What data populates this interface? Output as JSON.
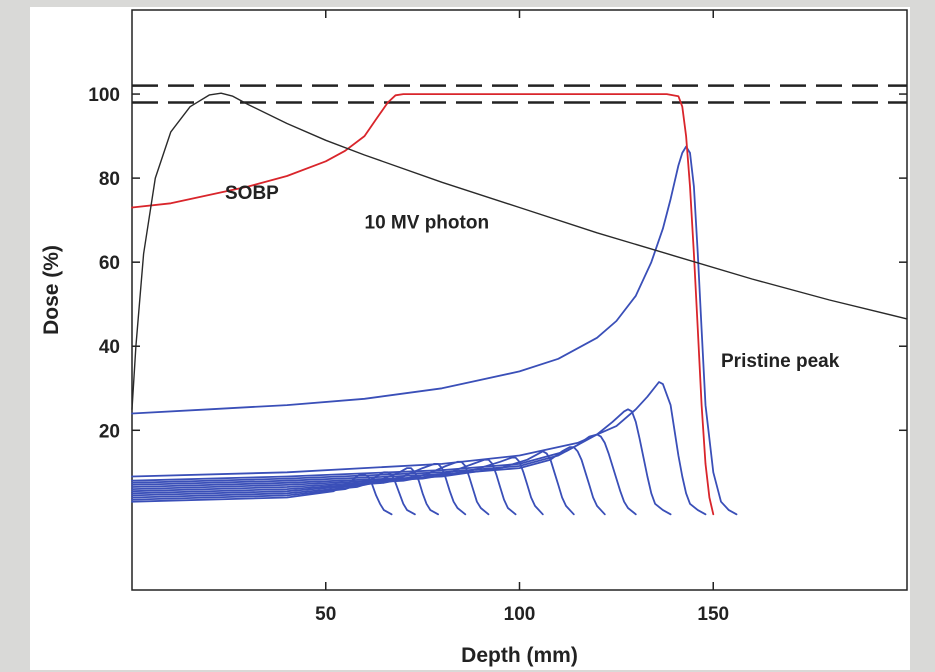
{
  "chart_data": {
    "type": "line",
    "xlabel": "Depth (mm)",
    "ylabel": "Dose (%)",
    "xlim": [
      0,
      200
    ],
    "ylim": [
      -18,
      120
    ],
    "xticks": [
      50,
      100,
      150
    ],
    "yticks": [
      20,
      40,
      60,
      80,
      100
    ],
    "grid": false,
    "reference_lines": [
      {
        "y": 102,
        "style": "dashed",
        "color": "#222222"
      },
      {
        "y": 98,
        "style": "dashed",
        "color": "#222222"
      }
    ],
    "annotations": [
      {
        "text": "SOBP",
        "x": 24,
        "y": 75
      },
      {
        "text": "10 MV photon",
        "x": 60,
        "y": 68
      },
      {
        "text": "Pristine peak",
        "x": 152,
        "y": 35
      }
    ],
    "series": [
      {
        "color": "#d9252b",
        "x": [
          0,
          10,
          20,
          30,
          40,
          50,
          55,
          60,
          63,
          66,
          68,
          70,
          80,
          100,
          120,
          138,
          141,
          142,
          143,
          144,
          145,
          146,
          147,
          148,
          149,
          150
        ],
        "y": [
          73,
          74,
          76,
          78,
          80.5,
          84,
          86.5,
          90,
          94,
          98,
          99.7,
          100,
          100,
          100,
          100,
          100,
          99.5,
          97,
          90,
          78,
          62,
          44,
          26,
          12,
          4,
          0
        ]
      },
      {
        "color": "#2a2a2a",
        "x": [
          0,
          1,
          3,
          6,
          10,
          15,
          20,
          23,
          26,
          30,
          40,
          50,
          60,
          80,
          100,
          120,
          140,
          160,
          180,
          200
        ],
        "y": [
          25,
          40,
          62,
          80,
          91,
          97,
          99.8,
          100.2,
          99.5,
          97.5,
          93,
          89,
          85.5,
          79,
          73,
          67,
          61.5,
          56,
          51,
          46.5
        ]
      },
      {
        "color": "#3a4fb8",
        "x": [
          0,
          20,
          40,
          60,
          80,
          100,
          110,
          120,
          125,
          130,
          134,
          137,
          139,
          140,
          141,
          142,
          143,
          144,
          145,
          146,
          147,
          148,
          150,
          152,
          154,
          156
        ],
        "y": [
          24,
          25,
          26,
          27.5,
          30,
          34,
          37,
          42,
          46,
          52,
          60,
          68,
          75,
          79,
          83,
          86,
          87.5,
          86,
          78,
          62,
          44,
          26,
          10,
          3,
          1,
          0
        ]
      },
      {
        "color": "#3a4fb8",
        "x": [
          0,
          40,
          80,
          100,
          115,
          125,
          130,
          133,
          136,
          137,
          139,
          140,
          141,
          142,
          143,
          144,
          146,
          148
        ],
        "y": [
          9,
          10,
          12,
          14,
          17,
          21,
          25,
          28,
          31.5,
          31,
          26,
          20,
          14,
          9,
          5,
          2.5,
          1,
          0
        ]
      },
      {
        "color": "#3a4fb8",
        "x": [
          0,
          40,
          80,
          100,
          112,
          120,
          124,
          127,
          128,
          129,
          130,
          131,
          132,
          133,
          134,
          135,
          137,
          139
        ],
        "y": [
          8,
          9,
          10.5,
          12,
          15,
          19,
          22,
          24.5,
          25,
          24.5,
          22,
          18,
          13.5,
          9,
          5,
          2.5,
          1,
          0
        ]
      },
      {
        "color": "#3a4fb8",
        "x": [
          0,
          40,
          80,
          100,
          110,
          115,
          118,
          120,
          121,
          122,
          123,
          124,
          125,
          126,
          127,
          128,
          130
        ],
        "y": [
          7.5,
          8.5,
          10,
          11.5,
          14,
          16.5,
          18.5,
          19,
          18.5,
          17,
          14.5,
          11.5,
          8.5,
          5.5,
          3,
          1.5,
          0
        ]
      },
      {
        "color": "#3a4fb8",
        "x": [
          0,
          40,
          80,
          100,
          108,
          111,
          113,
          114,
          115,
          116,
          117,
          118,
          119,
          120,
          122
        ],
        "y": [
          7,
          8,
          9.5,
          11,
          13,
          15,
          16,
          16,
          15,
          13,
          10,
          7,
          4,
          2,
          0
        ]
      },
      {
        "color": "#3a4fb8",
        "x": [
          0,
          40,
          80,
          95,
          102,
          105,
          106,
          107,
          108,
          109,
          110,
          111,
          112,
          114
        ],
        "y": [
          6.5,
          7.5,
          9,
          11,
          13,
          14.5,
          15,
          14.5,
          13,
          10,
          7,
          4,
          2,
          0
        ]
      },
      {
        "color": "#3a4fb8",
        "x": [
          0,
          40,
          75,
          88,
          95,
          98,
          99,
          100,
          101,
          102,
          103,
          104,
          106
        ],
        "y": [
          6,
          7,
          8.5,
          10.5,
          12.5,
          13.5,
          13.5,
          12.5,
          10,
          7,
          4,
          2,
          0
        ]
      },
      {
        "color": "#3a4fb8",
        "x": [
          0,
          40,
          70,
          82,
          88,
          91,
          92,
          93,
          94,
          95,
          96,
          97,
          99
        ],
        "y": [
          5.5,
          6.5,
          8,
          10,
          12,
          13,
          13,
          12,
          9.5,
          6.5,
          3.5,
          1.5,
          0
        ]
      },
      {
        "color": "#3a4fb8",
        "x": [
          0,
          40,
          65,
          76,
          81,
          84,
          85,
          86,
          87,
          88,
          89,
          90,
          92
        ],
        "y": [
          5,
          6,
          7.5,
          9.5,
          11.5,
          12.5,
          12.5,
          11.5,
          9,
          6,
          3,
          1.5,
          0
        ]
      },
      {
        "color": "#3a4fb8",
        "x": [
          0,
          40,
          60,
          70,
          75,
          78,
          79,
          80,
          81,
          82,
          83,
          84,
          86
        ],
        "y": [
          4.5,
          5.5,
          7,
          9,
          11,
          12,
          12,
          11,
          8.5,
          5.5,
          3,
          1.5,
          0
        ]
      },
      {
        "color": "#3a4fb8",
        "x": [
          0,
          40,
          58,
          65,
          69,
          71,
          72,
          73,
          74,
          75,
          76,
          77,
          79
        ],
        "y": [
          4,
          5,
          6.5,
          8.5,
          10,
          11,
          11,
          10,
          8,
          5,
          2.5,
          1,
          0
        ]
      },
      {
        "color": "#3a4fb8",
        "x": [
          0,
          40,
          55,
          61,
          64,
          65,
          66,
          67,
          68,
          69,
          70,
          71,
          73
        ],
        "y": [
          3.5,
          4.5,
          6,
          8,
          9.5,
          10,
          10,
          9.5,
          7.5,
          5,
          2.5,
          1,
          0
        ]
      },
      {
        "color": "#3a4fb8",
        "x": [
          0,
          40,
          52,
          56,
          58,
          59,
          60,
          61,
          62,
          63,
          64,
          65,
          67
        ],
        "y": [
          3,
          4,
          5.5,
          7.5,
          9,
          9.5,
          9.5,
          9,
          7,
          4.5,
          2.5,
          1,
          0
        ]
      }
    ]
  }
}
